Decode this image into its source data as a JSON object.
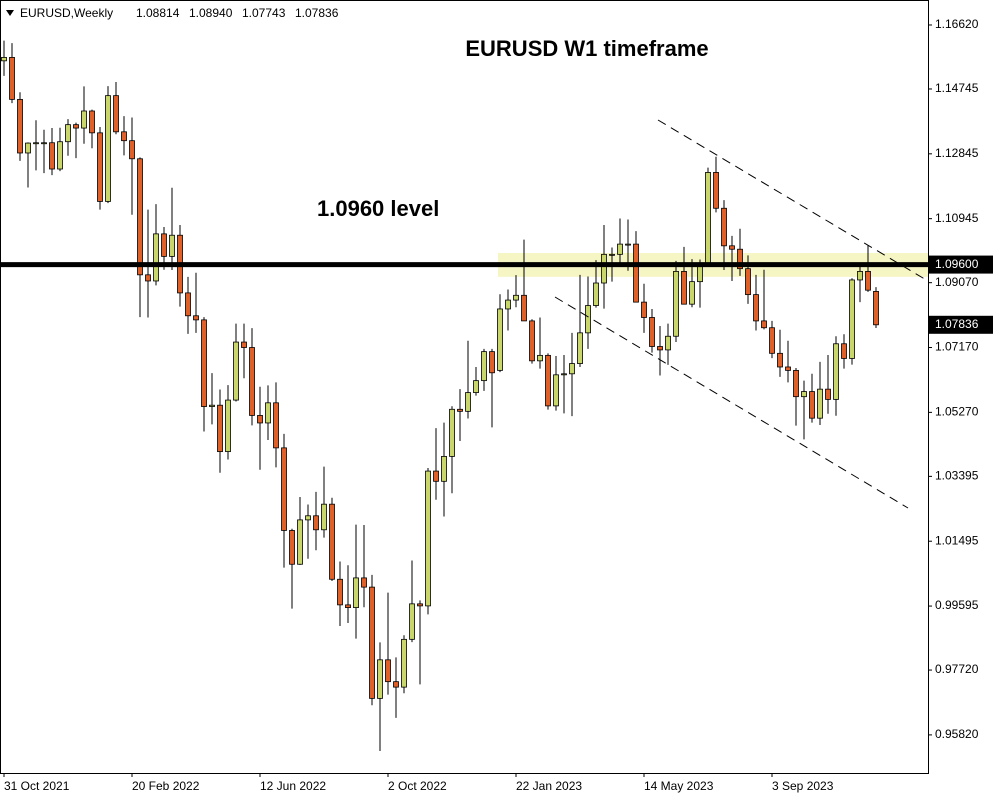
{
  "chart_data": {
    "type": "candlestick",
    "title": "EURUSD W1 timeframe",
    "header": {
      "symbol": "EURUSD,Weekly",
      "ohlc": [
        1.08814,
        {
          "value": 1.0894,
          "label": "1.08940"
        },
        1.07743,
        1.07836
      ]
    },
    "level": {
      "value": 1.096,
      "label": "1.09600"
    },
    "level_text": "1.0960 level",
    "last_price": 1.07836,
    "zone": [
      1.0924,
      1.0994
    ],
    "zone_color": "#f6f5c4",
    "up_color": "#c8d66c",
    "down_color": "#e0602a",
    "categories": [
      "31 Oct 2021",
      null,
      null,
      null,
      null,
      null,
      null,
      null,
      null,
      null,
      null,
      null,
      null,
      null,
      null,
      null,
      "20 Feb 2022",
      null,
      null,
      null,
      null,
      null,
      null,
      null,
      null,
      null,
      null,
      null,
      null,
      null,
      null,
      null,
      "12 Jun 2022",
      null,
      null,
      null,
      null,
      null,
      null,
      null,
      null,
      null,
      null,
      null,
      null,
      null,
      null,
      null,
      "2 Oct 2022",
      null,
      null,
      null,
      null,
      null,
      null,
      null,
      null,
      null,
      null,
      null,
      null,
      null,
      null,
      null,
      "22 Jan 2023",
      null,
      null,
      null,
      null,
      null,
      null,
      null,
      null,
      null,
      null,
      null,
      null,
      null,
      null,
      null,
      "14 May 2023",
      null,
      null,
      null,
      null,
      null,
      null,
      null,
      null,
      null,
      null,
      null,
      null,
      null,
      null,
      null,
      "3 Sep 2023",
      null,
      null,
      null,
      null,
      null,
      null,
      null,
      null,
      null,
      null,
      null,
      null,
      null
    ],
    "open": [
      1.1557,
      1.1567,
      1.1444,
      1.1287,
      1.1316,
      1.1317,
      1.1317,
      1.124,
      1.132,
      1.137,
      1.136,
      1.141,
      1.1346,
      1.1145,
      1.1455,
      1.1349,
      1.1323,
      1.127,
      1.093,
      1.0912,
      1.105,
      1.0984,
      1.1046,
      1.0877,
      1.081,
      1.0798,
      1.0544,
      1.0548,
      1.0412,
      1.0563,
      1.0733,
      1.0717,
      1.0518,
      1.0496,
      1.0555,
      1.0423,
      1.0181,
      1.0082,
      1.0212,
      1.0224,
      1.0183,
      1.0258,
      1.0038,
      0.9963,
      0.9955,
      1.0042,
      1.0015,
      0.9689,
      0.9802,
      0.9738,
      0.9722,
      0.9862,
      0.9966,
      0.996,
      1.0355,
      1.0325,
      1.0398,
      1.0536,
      1.053,
      1.0585,
      1.062,
      1.0705,
      1.065,
      1.083,
      1.0856,
      1.087,
      1.0795,
      1.0678,
      1.0694,
      1.0546,
      1.0637,
      1.064,
      1.067,
      1.076,
      1.084,
      1.0906,
      1.099,
      1.099,
      1.102,
      1.102,
      1.085,
      1.0805,
      1.072,
      1.071,
      1.075,
      1.094,
      1.0844,
      1.091,
      1.0965,
      1.123,
      1.1125,
      1.1015,
      1.1005,
      1.0948,
      1.0872,
      1.0795,
      1.0775,
      1.07,
      1.066,
      1.065,
      1.0573,
      1.0588,
      1.051,
      1.0595,
      1.0565,
      1.0728,
      1.0685,
      1.0915,
      1.094,
      1.08814
    ],
    "high": [
      1.1616,
      1.1609,
      1.1465,
      1.1318,
      1.1383,
      1.1355,
      1.136,
      1.1361,
      1.1386,
      1.1376,
      1.1482,
      1.1414,
      1.1363,
      1.1483,
      1.1495,
      1.1395,
      1.1391,
      1.1274,
      1.1121,
      1.1137,
      1.107,
      1.1185,
      1.1076,
      1.0924,
      1.0936,
      1.0806,
      1.0642,
      1.0594,
      1.0607,
      1.0787,
      1.0787,
      1.0774,
      1.0602,
      1.0606,
      1.0615,
      1.0464,
      1.0186,
      1.0279,
      1.0257,
      1.0294,
      1.0368,
      1.0277,
      1.009,
      1.0079,
      1.0198,
      1.0197,
      1.0051,
      0.9853,
      0.9999,
      0.9809,
      0.9874,
      1.0093,
      0.9976,
      1.0364,
      1.0481,
      1.0497,
      1.0545,
      1.0595,
      1.0737,
      1.066,
      1.0713,
      1.0713,
      1.0873,
      1.0887,
      1.0929,
      1.1033,
      1.08,
      1.0805,
      1.07,
      1.0692,
      1.0695,
      1.076,
      1.093,
      1.0925,
      1.0973,
      1.1076,
      1.101,
      1.1095,
      1.1092,
      1.1058,
      1.0904,
      1.083,
      1.078,
      1.0787,
      1.0971,
      1.1012,
      1.0976,
      1.0975,
      1.1244,
      1.1276,
      1.1149,
      1.1044,
      1.1065,
      1.0987,
      1.093,
      1.0945,
      1.0795,
      1.0769,
      1.0737,
      1.0657,
      1.062,
      1.064,
      1.0675,
      1.0695,
      1.075,
      1.0756,
      1.092,
      1.0965,
      1.1017,
      1.0894
    ],
    "low": [
      1.1513,
      1.1433,
      1.1264,
      1.1186,
      1.1236,
      1.1228,
      1.1222,
      1.1234,
      1.1279,
      1.1272,
      1.1314,
      1.1301,
      1.1121,
      1.114,
      1.1342,
      1.128,
      1.1106,
      1.0806,
      1.0805,
      1.0899,
      1.0945,
      1.0944,
      1.0837,
      1.0757,
      1.076,
      1.0471,
      1.0492,
      1.035,
      1.0389,
      1.0559,
      1.0627,
      1.0489,
      1.0359,
      1.0446,
      1.0366,
      1.0072,
      0.9952,
      1.008,
      1.0098,
      1.0123,
      1.016,
      1.0033,
      0.9901,
      0.991,
      0.9864,
      0.9956,
      0.9669,
      0.9535,
      0.97,
      0.9632,
      0.9704,
      0.9854,
      0.973,
      0.9935,
      1.0271,
      1.0222,
      1.029,
      1.0443,
      1.0509,
      1.0576,
      1.059,
      1.0483,
      1.0645,
      1.0767,
      1.0835,
      1.0795,
      1.067,
      1.0655,
      1.0535,
      1.0532,
      1.0524,
      1.0516,
      1.066,
      1.0713,
      1.0834,
      1.0831,
      1.091,
      1.0964,
      1.0942,
      1.085,
      1.076,
      1.0702,
      1.0635,
      1.0666,
      1.0733,
      1.0844,
      1.0835,
      1.0834,
      1.096,
      1.1113,
      1.0944,
      1.0912,
      1.0927,
      1.0845,
      1.0767,
      1.077,
      1.0686,
      1.0631,
      1.0615,
      1.0488,
      1.0448,
      1.0497,
      1.049,
      1.0523,
      1.0517,
      1.0655,
      1.0667,
      1.085,
      1.088,
      1.07743
    ],
    "close": [
      1.1567,
      1.1444,
      1.1287,
      1.1316,
      1.1317,
      1.1317,
      1.124,
      1.132,
      1.137,
      1.136,
      1.141,
      1.1346,
      1.1145,
      1.1455,
      1.1349,
      1.1323,
      1.127,
      1.093,
      1.0912,
      1.105,
      1.0984,
      1.1046,
      1.0877,
      1.081,
      1.0798,
      1.0544,
      1.0548,
      1.0412,
      1.0563,
      1.0733,
      1.0717,
      1.0518,
      1.0496,
      1.0555,
      1.0423,
      1.0181,
      1.0082,
      1.0212,
      1.0224,
      1.0183,
      1.0258,
      1.0038,
      0.9963,
      0.9955,
      1.0042,
      1.0015,
      0.9689,
      0.9802,
      0.9738,
      0.9722,
      0.9862,
      0.9966,
      0.996,
      1.0355,
      1.0325,
      1.0398,
      1.0536,
      1.053,
      1.0585,
      1.062,
      1.0705,
      1.0643,
      1.083,
      1.0856,
      1.087,
      1.0795,
      1.0678,
      1.0694,
      1.0546,
      1.0637,
      1.064,
      1.067,
      1.076,
      1.084,
      1.0906,
      1.099,
      1.099,
      1.102,
      1.102,
      1.085,
      1.0805,
      1.072,
      1.071,
      1.075,
      1.094,
      1.0844,
      1.091,
      1.0965,
      1.123,
      1.1125,
      1.1015,
      1.1005,
      1.0948,
      1.0872,
      1.0795,
      1.0775,
      1.07,
      1.066,
      1.065,
      1.0573,
      1.0588,
      1.051,
      1.0595,
      1.0565,
      1.0728,
      1.0685,
      1.0915,
      1.094,
      1.0885,
      1.07836
    ],
    "ylim": [
      0.94704,
      1.17352
    ],
    "yticks": [
      {
        "value": 1.1662,
        "label": "1.16620"
      },
      {
        "value": 1.14745,
        "label": "1.14745"
      },
      {
        "value": 1.12845,
        "label": "1.12845"
      },
      {
        "value": 1.10945,
        "label": "1.10945"
      },
      {
        "value": 1.0907,
        "label": "1.09070"
      },
      {
        "value": 1.0717,
        "label": "1.07170"
      },
      {
        "value": 1.0527,
        "label": "1.05270"
      },
      {
        "value": 1.03395,
        "label": "1.03395"
      },
      {
        "value": 1.01495,
        "label": "1.01495"
      },
      {
        "value": 0.99595,
        "label": "0.99595"
      },
      {
        "value": 0.9772,
        "label": "0.97720"
      },
      {
        "value": 0.9582,
        "label": "0.95820"
      }
    ]
  }
}
